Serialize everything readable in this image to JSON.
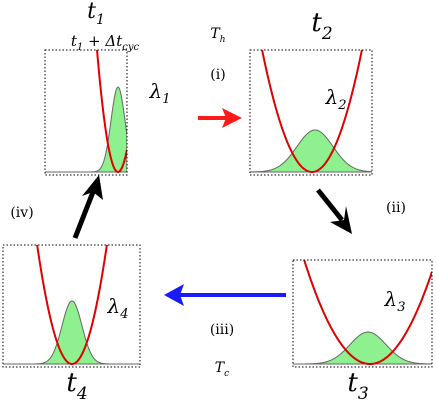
{
  "labels": [
    {
      "parts": [
        {
          "text": "t"
        },
        {
          "text": "1",
          "sub": true
        }
      ]
    },
    {
      "parts": [
        {
          "text": "t"
        },
        {
          "text": "1",
          "sub": true
        },
        {
          "text": " + Δt"
        },
        {
          "text": "cyc",
          "sub": true
        }
      ]
    },
    {
      "parts": [
        {
          "text": "T"
        },
        {
          "text": "h",
          "sub": true
        }
      ]
    },
    {
      "parts": [
        {
          "text": "(i)"
        }
      ]
    },
    {
      "parts": [
        {
          "text": "t"
        },
        {
          "text": "2",
          "sub": true
        }
      ]
    },
    {
      "parts": [
        {
          "text": "λ"
        },
        {
          "text": "1",
          "sub": true
        }
      ]
    },
    {
      "parts": [
        {
          "text": "λ"
        },
        {
          "text": "2",
          "sub": true
        }
      ]
    },
    {
      "parts": [
        {
          "text": "(ii)"
        }
      ]
    },
    {
      "parts": [
        {
          "text": "(iv)"
        }
      ]
    },
    {
      "parts": [
        {
          "text": "λ"
        },
        {
          "text": "3",
          "sub": true
        }
      ]
    },
    {
      "parts": [
        {
          "text": "λ"
        },
        {
          "text": "4",
          "sub": true
        }
      ]
    },
    {
      "parts": [
        {
          "text": "(iii)"
        }
      ]
    },
    {
      "parts": [
        {
          "text": "T"
        },
        {
          "text": "c",
          "sub": true
        }
      ]
    },
    {
      "parts": [
        {
          "text": "t"
        },
        {
          "text": "4",
          "sub": true
        }
      ]
    },
    {
      "parts": [
        {
          "text": "t"
        },
        {
          "text": "3",
          "sub": true
        }
      ]
    }
  ]
}
